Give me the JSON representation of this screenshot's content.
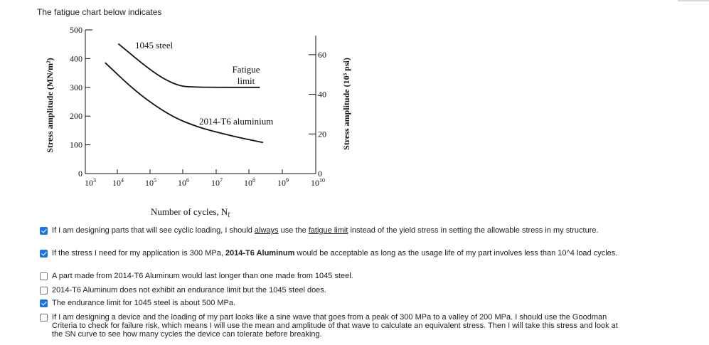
{
  "intro": "The fatigue chart below indicates",
  "chart_data": {
    "type": "line",
    "ylabel": "Stress amplitude (MN/m²)",
    "ylabel2": "Stress amplitude (10³ psi)",
    "xlabel": "Number of cycles, N",
    "xlabel_sub": "f",
    "ylim": [
      0,
      500
    ],
    "y_ticks": [
      0,
      100,
      200,
      300,
      400,
      500
    ],
    "y2_ticks": [
      0,
      20,
      40,
      60
    ],
    "x_ticks": [
      {
        "base": "10",
        "exp": "3"
      },
      {
        "base": "10",
        "exp": "4"
      },
      {
        "base": "10",
        "exp": "5"
      },
      {
        "base": "10",
        "exp": "6"
      },
      {
        "base": "10",
        "exp": "7"
      },
      {
        "base": "10",
        "exp": "8"
      },
      {
        "base": "10",
        "exp": "9"
      },
      {
        "base": "10",
        "exp": "10"
      }
    ],
    "series": [
      {
        "name": "1045 steel",
        "points": [
          [
            4.0,
            452
          ],
          [
            5.1,
            348
          ],
          [
            5.8,
            305
          ],
          [
            6.3,
            301
          ],
          [
            7.0,
            300
          ],
          [
            7.7,
            300
          ],
          [
            8.3,
            300
          ]
        ]
      },
      {
        "name": "2014-T6 aluminium",
        "points": [
          [
            3.6,
            386
          ],
          [
            4.6,
            278
          ],
          [
            5.6,
            200
          ],
          [
            6.4,
            162
          ],
          [
            7.2,
            138
          ],
          [
            7.8,
            122
          ],
          [
            8.4,
            108
          ]
        ]
      }
    ],
    "annotation": [
      "Fatigue",
      "limit"
    ]
  },
  "options": [
    {
      "checked": true,
      "parts": [
        {
          "t": "If I am designing parts that will see cyclic loading, I should "
        },
        {
          "t": "always",
          "s": "u"
        },
        {
          "t": " use the "
        },
        {
          "t": "fatigue limit",
          "s": "u"
        },
        {
          "t": " instead of the yield stress in setting the allowable stress in my structure."
        }
      ]
    },
    {
      "checked": true,
      "parts": [
        {
          "t": "If the stress I need for my application is 300 MPa, "
        },
        {
          "t": "2014-T6 Aluminum",
          "s": "b"
        },
        {
          "t": " would be acceptable as long as the usage life of my part involves less than 10^4 load cycles."
        }
      ]
    },
    {
      "checked": false,
      "parts": [
        {
          "t": "A part made from 2014-T6 Aluminum would last longer than one made from 1045 steel."
        }
      ]
    },
    {
      "checked": false,
      "parts": [
        {
          "t": "2014-T6 Aluminum does not exhibit an endurance limit but the 1045 steel does."
        }
      ]
    },
    {
      "checked": true,
      "parts": [
        {
          "t": "The endurance limit for 1045 steel is about 500 MPa."
        }
      ]
    },
    {
      "checked": false,
      "parts": [
        {
          "t": "If I am designing a device and the loading of my part looks like a sine wave that goes from a peak of 300 MPa to a valley of 200 MPa.  I should use the Goodman Criteria to check for failure risk, which means I will use the mean and amplitude of that wave to calculate an equivalent stress.  Then I will take this stress and look at the SN curve to see how many cycles the device can tolerate before breaking."
        }
      ]
    }
  ]
}
